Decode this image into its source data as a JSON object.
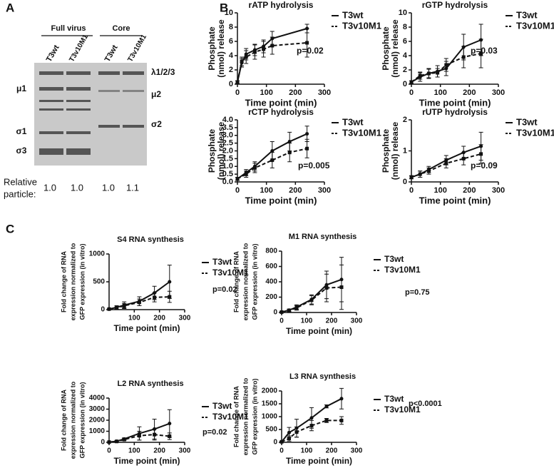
{
  "panel_a": {
    "label": "A",
    "groups": [
      "Full virus",
      "Core"
    ],
    "lanes": [
      "T3wt",
      "T3v10M1",
      "T3wt",
      "T3v10M1"
    ],
    "left_bands": [
      "μ1",
      "σ1",
      "σ3"
    ],
    "right_bands": [
      "λ1/2/3",
      "μ2",
      "σ2"
    ],
    "relative_label": [
      "Relative",
      "particle:"
    ],
    "relative_values": [
      "1.0",
      "1.0",
      "1.0",
      "1.1"
    ]
  },
  "panel_b_label": "B",
  "panel_c_label": "C",
  "chart_data": [
    {
      "type": "line",
      "title": "rATP hydrolysis",
      "x_label": "Time point (min)",
      "y_label": [
        "Phosphate",
        "(nmol) release"
      ],
      "annotation": "p=0.02",
      "xlim": [
        0,
        300
      ],
      "xticks": [
        0,
        100,
        200,
        300
      ],
      "ylim": [
        0,
        10
      ],
      "yticks": [
        0,
        2,
        4,
        6,
        8,
        10
      ],
      "x": [
        0,
        15,
        30,
        60,
        90,
        120,
        240
      ],
      "series": [
        {
          "name": "T3wt",
          "color": "#111111",
          "dash": false,
          "values": [
            0.3,
            3,
            4.2,
            4.8,
            5.3,
            6.4,
            7.8
          ],
          "errors": [
            0.2,
            0.6,
            0.8,
            0.8,
            0.9,
            1,
            0.6
          ]
        },
        {
          "name": "T3v10M1",
          "color": "#111111",
          "dash": true,
          "values": [
            0.3,
            3.2,
            3.8,
            4.5,
            4.9,
            5.4,
            5.8
          ],
          "errors": [
            0.2,
            0.6,
            0.9,
            1,
            1.1,
            1.2,
            2
          ]
        }
      ]
    },
    {
      "type": "line",
      "title": "rGTP hydrolysis",
      "x_label": "Time point (min)",
      "y_label": [
        "Phosphate",
        "(nmol) release"
      ],
      "annotation": "p=0.03",
      "xlim": [
        0,
        300
      ],
      "xticks": [
        0,
        100,
        200,
        300
      ],
      "ylim": [
        0,
        10
      ],
      "yticks": [
        0,
        2,
        4,
        6,
        8,
        10
      ],
      "x": [
        0,
        30,
        60,
        90,
        120,
        180,
        240
      ],
      "series": [
        {
          "name": "T3wt",
          "color": "#111111",
          "dash": false,
          "values": [
            0.3,
            1,
            1.5,
            1.8,
            2.2,
            5.2,
            6.2
          ],
          "errors": [
            0.2,
            0.6,
            0.7,
            0.8,
            1,
            1.8,
            2.2
          ]
        },
        {
          "name": "T3v10M1",
          "color": "#111111",
          "dash": true,
          "values": [
            0.3,
            1.2,
            1.5,
            1.6,
            2.7,
            3.8,
            4.3
          ],
          "errors": [
            0.2,
            0.5,
            0.6,
            0.6,
            0.9,
            1.5,
            2
          ]
        }
      ]
    },
    {
      "type": "line",
      "title": "rCTP hydrolysis",
      "x_label": "Time point (min)",
      "y_label": [
        "Phosphate",
        "(nmol) release"
      ],
      "annotation": "p=0.005",
      "xlim": [
        0,
        300
      ],
      "xticks": [
        0,
        100,
        200,
        300
      ],
      "ylim": [
        0,
        4
      ],
      "yticks": [
        {
          "value": 0,
          "label": "0.0"
        },
        {
          "value": 0.5,
          "label": "0.5"
        },
        {
          "value": 1,
          "label": "1.0"
        },
        {
          "value": 1.5,
          "label": "1.5"
        },
        {
          "value": 2,
          "label": "2.0"
        },
        {
          "value": 2.5,
          "label": "2.5"
        },
        {
          "value": 3,
          "label": "3.0"
        },
        {
          "value": 3.5,
          "label": "3.5"
        },
        {
          "value": 4,
          "label": "4.0"
        }
      ],
      "x": [
        0,
        30,
        60,
        120,
        180,
        240
      ],
      "series": [
        {
          "name": "T3wt",
          "color": "#111111",
          "dash": false,
          "values": [
            0.2,
            0.6,
            1,
            2,
            2.6,
            3.1
          ],
          "errors": [
            0.1,
            0.2,
            0.3,
            0.6,
            0.6,
            0.5
          ]
        },
        {
          "name": "T3v10M1",
          "color": "#111111",
          "dash": true,
          "values": [
            0.2,
            0.5,
            0.9,
            1.4,
            1.9,
            2.15
          ],
          "errors": [
            0.1,
            0.2,
            0.3,
            0.5,
            0.6,
            0.6
          ]
        }
      ]
    },
    {
      "type": "line",
      "title": "rUTP hydrolysis",
      "x_label": "Time point (min)",
      "y_label": [
        "Phosphate",
        "(nmol) release"
      ],
      "annotation": "p=0.09",
      "xlim": [
        0,
        300
      ],
      "xticks": [
        0,
        100,
        200,
        300
      ],
      "ylim": [
        0,
        2
      ],
      "yticks": [
        0,
        1,
        2
      ],
      "x": [
        0,
        30,
        60,
        120,
        180,
        240
      ],
      "series": [
        {
          "name": "T3wt",
          "color": "#111111",
          "dash": false,
          "values": [
            0.15,
            0.25,
            0.4,
            0.7,
            0.95,
            1.15
          ],
          "errors": [
            0.05,
            0.1,
            0.1,
            0.15,
            0.2,
            0.45
          ]
        },
        {
          "name": "T3v10M1",
          "color": "#111111",
          "dash": true,
          "values": [
            0.15,
            0.25,
            0.35,
            0.6,
            0.75,
            0.9
          ],
          "errors": [
            0.05,
            0.1,
            0.1,
            0.15,
            0.2,
            0.3
          ]
        }
      ]
    },
    {
      "type": "line",
      "title": "S4 RNA synthesis",
      "x_label": "Time point (min)",
      "y_label": [
        "Fold change of RNA",
        "expression normalized to",
        "GFP expression (in vitro)"
      ],
      "annotation": "p=0.02",
      "xlim": [
        0,
        300
      ],
      "xticks": [
        100,
        200,
        300
      ],
      "ylim": [
        0,
        1000
      ],
      "yticks": [
        0,
        500,
        1000
      ],
      "x": [
        0,
        30,
        60,
        120,
        180,
        240
      ],
      "series": [
        {
          "name": "T3wt",
          "color": "#111111",
          "dash": false,
          "values": [
            10,
            40,
            80,
            150,
            300,
            500
          ],
          "errors": [
            5,
            30,
            60,
            80,
            120,
            300
          ]
        },
        {
          "name": "T3v10M1",
          "color": "#111111",
          "dash": true,
          "values": [
            10,
            30,
            70,
            130,
            220,
            230
          ],
          "errors": [
            5,
            20,
            40,
            60,
            80,
            100
          ]
        }
      ]
    },
    {
      "type": "line",
      "title": "M1 RNA synthesis",
      "x_label": "Time point (min)",
      "y_label": [
        "Fold change of RNA",
        "expression normalized to",
        "GFP expression (in vitro)"
      ],
      "annotation": "p=0.75",
      "xlim": [
        0,
        300
      ],
      "xticks": [
        0,
        100,
        200,
        300
      ],
      "ylim": [
        0,
        800
      ],
      "yticks": [
        0,
        200,
        400,
        600,
        800
      ],
      "x": [
        0,
        30,
        60,
        120,
        180,
        240
      ],
      "series": [
        {
          "name": "T3wt",
          "color": "#111111",
          "dash": false,
          "values": [
            5,
            30,
            70,
            170,
            360,
            430
          ],
          "errors": [
            5,
            15,
            30,
            60,
            180,
            290
          ]
        },
        {
          "name": "T3v10M1",
          "color": "#111111",
          "dash": true,
          "values": [
            5,
            25,
            60,
            160,
            320,
            330
          ],
          "errors": [
            5,
            15,
            30,
            60,
            180,
            290
          ]
        }
      ]
    },
    {
      "type": "line",
      "title": "L2 RNA synthesis",
      "x_label": "Time point (min)",
      "y_label": [
        "Fold change of RNA",
        "expression normalized to",
        "GFP expression (in vitro)"
      ],
      "annotation": "p=0.02",
      "xlim": [
        0,
        300
      ],
      "xticks": [
        0,
        100,
        200,
        300
      ],
      "ylim": [
        0,
        4000
      ],
      "yticks": [
        0,
        1000,
        2000,
        3000,
        4000
      ],
      "x": [
        0,
        30,
        60,
        120,
        180,
        240
      ],
      "series": [
        {
          "name": "T3wt",
          "color": "#111111",
          "dash": false,
          "values": [
            20,
            100,
            300,
            800,
            1200,
            1700
          ],
          "errors": [
            10,
            50,
            100,
            600,
            900,
            1250
          ]
        },
        {
          "name": "T3v10M1",
          "color": "#111111",
          "dash": true,
          "values": [
            20,
            80,
            250,
            600,
            700,
            550
          ],
          "errors": [
            10,
            40,
            100,
            400,
            500,
            300
          ]
        }
      ]
    },
    {
      "type": "line",
      "title": "L3 RNA synthesis",
      "x_label": "Time point (min)",
      "y_label": [
        "Fold change of RNA",
        "expression normalized to",
        "GFP expression (in vitro)"
      ],
      "annotation": "p<0.0001",
      "xlim": [
        0,
        300
      ],
      "xticks": [
        0,
        100,
        200,
        300
      ],
      "ylim": [
        0,
        2000
      ],
      "yticks": [
        0,
        500,
        1000,
        1500,
        2000
      ],
      "x": [
        0,
        30,
        60,
        120,
        180,
        240
      ],
      "series": [
        {
          "name": "T3wt",
          "color": "#111111",
          "dash": false,
          "values": [
            20,
            380,
            550,
            950,
            1400,
            1700
          ],
          "errors": [
            10,
            200,
            350,
            400,
            60,
            400
          ]
        },
        {
          "name": "T3v10M1",
          "color": "#111111",
          "dash": true,
          "values": [
            20,
            150,
            400,
            650,
            850,
            850
          ],
          "errors": [
            10,
            100,
            200,
            200,
            80,
            150
          ]
        }
      ]
    }
  ]
}
